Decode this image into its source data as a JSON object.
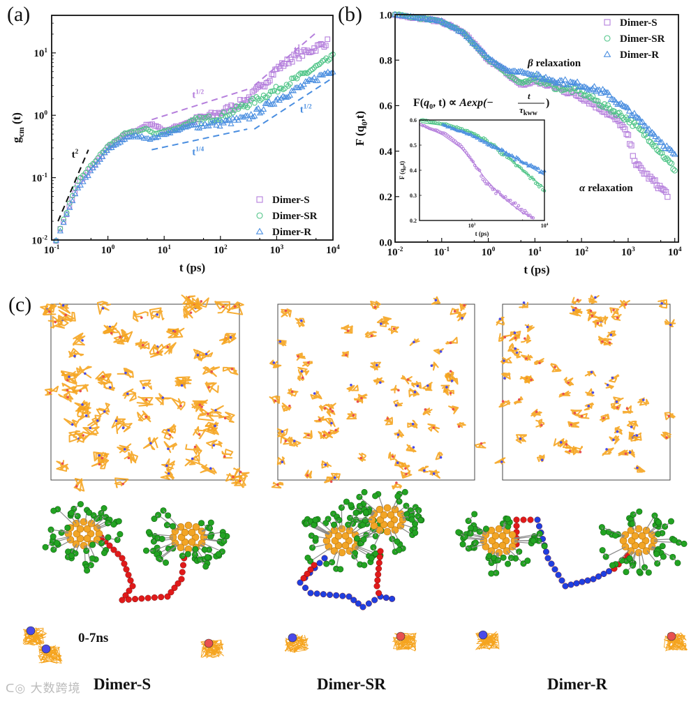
{
  "colors": {
    "dimer_s": "#b57fdc",
    "dimer_sr": "#4fc487",
    "dimer_r": "#4a8ee0",
    "orange": "#f5a41f",
    "green": "#1f9a1f",
    "red": "#e01a1a",
    "blue": "#1f3fe0",
    "bead_blue": "#4a4ae8",
    "bead_red": "#e85050"
  },
  "chart_data": [
    {
      "panel": "(a)",
      "type": "scatter",
      "scale": "log-log",
      "xlabel": "t (ps)",
      "ylabel": "g_cm (t)",
      "ylabel_main": "g",
      "ylabel_sub": "cm",
      "ylabel_tail": " (t)",
      "xlim": [
        0.1,
        10000
      ],
      "ylim": [
        0.01,
        40
      ],
      "xticks": [
        {
          "v": 0.1,
          "b": "10",
          "e": "-1"
        },
        {
          "v": 1,
          "b": "10",
          "e": "0"
        },
        {
          "v": 10,
          "b": "10",
          "e": "1"
        },
        {
          "v": 100,
          "b": "10",
          "e": "2"
        },
        {
          "v": 1000,
          "b": "10",
          "e": "3"
        },
        {
          "v": 10000,
          "b": "10",
          "e": "4"
        }
      ],
      "yticks": [
        {
          "v": 0.01,
          "b": "10",
          "e": "-2"
        },
        {
          "v": 0.1,
          "b": "10",
          "e": "-1"
        },
        {
          "v": 1,
          "b": "10",
          "e": "0"
        },
        {
          "v": 10,
          "b": "10",
          "e": "1"
        }
      ],
      "legend_position": "bottom-right",
      "series": [
        {
          "name": "Dimer-S",
          "marker": "square",
          "x": [
            0.12,
            0.3,
            1,
            2,
            3,
            5,
            7,
            10,
            20,
            30,
            100,
            300,
            600,
            1000,
            2000,
            4000,
            8000
          ],
          "y": [
            0.01,
            0.08,
            0.3,
            0.48,
            0.55,
            0.7,
            0.7,
            0.55,
            0.7,
            0.8,
            1.1,
            1.8,
            3.2,
            5.5,
            8.5,
            11,
            15
          ]
        },
        {
          "name": "Dimer-SR",
          "marker": "circle",
          "x": [
            0.12,
            0.3,
            1,
            2,
            3,
            5,
            7,
            10,
            20,
            30,
            100,
            300,
            1000,
            3000,
            10000
          ],
          "y": [
            0.01,
            0.09,
            0.32,
            0.5,
            0.55,
            0.6,
            0.5,
            0.55,
            0.65,
            0.8,
            0.95,
            1.5,
            2.6,
            4.5,
            8.5
          ]
        },
        {
          "name": "Dimer-R",
          "marker": "triangle",
          "x": [
            0.12,
            0.3,
            1,
            2,
            3,
            6,
            10,
            30,
            100,
            300,
            1000,
            3000,
            10000
          ],
          "y": [
            0.01,
            0.07,
            0.28,
            0.42,
            0.47,
            0.42,
            0.5,
            0.68,
            0.75,
            0.9,
            1.8,
            3.0,
            5.5
          ]
        }
      ],
      "guides": [
        {
          "label_base": "t",
          "label_exp": "2",
          "color": "#111111",
          "x": [
            0.13,
            0.45
          ],
          "y": [
            0.02,
            0.28
          ],
          "label_at": [
            0.26,
            0.21
          ]
        },
        {
          "label_base": "t",
          "label_exp": "1/2",
          "color": "#b57fdc",
          "x": [
            6,
            300
          ],
          "y": [
            0.85,
            2.6
          ],
          "label_at": [
            40,
            1.9
          ]
        },
        {
          "label_base": "t",
          "label_exp": "1",
          "color": "#b57fdc",
          "x": [
            400,
            5000
          ],
          "y": [
            3,
            21
          ],
          "label_at": [
            2300,
            10
          ]
        },
        {
          "label_base": "t",
          "label_exp": "1/4",
          "color": "#4a8ee0",
          "x": [
            6,
            300
          ],
          "y": [
            0.28,
            0.6
          ],
          "label_at": [
            40,
            0.23
          ]
        },
        {
          "label_base": "t",
          "label_exp": "1/2",
          "color": "#4a8ee0",
          "x": [
            400,
            10000
          ],
          "y": [
            0.6,
            4
          ],
          "label_at": [
            3300,
            1.1
          ]
        }
      ]
    },
    {
      "panel": "(b)",
      "type": "scatter",
      "scale": "log-x",
      "xlabel": "t (ps)",
      "ylabel": "F (q0,t)",
      "ylabel_main": "F (q",
      "ylabel_sub": "0",
      "ylabel_tail": ",t)",
      "xlim": [
        0.01,
        12000
      ],
      "ylim": [
        0,
        1.0
      ],
      "xticks": [
        {
          "v": 0.01,
          "b": "10",
          "e": "-2"
        },
        {
          "v": 0.1,
          "b": "10",
          "e": "-1"
        },
        {
          "v": 1,
          "b": "10",
          "e": "0"
        },
        {
          "v": 10,
          "b": "10",
          "e": "1"
        },
        {
          "v": 100,
          "b": "10",
          "e": "2"
        },
        {
          "v": 1000,
          "b": "10",
          "e": "3"
        },
        {
          "v": 10000,
          "b": "10",
          "e": "4"
        }
      ],
      "yticks": [
        {
          "v": 0,
          "t": "0.0"
        },
        {
          "v": 0.2,
          "t": "0.2"
        },
        {
          "v": 0.4,
          "t": "0.4"
        },
        {
          "v": 0.6,
          "t": "0.6"
        },
        {
          "v": 0.8,
          "t": "0.8"
        },
        {
          "v": 1.0,
          "t": "1.0"
        }
      ],
      "legend_position": "top-right",
      "annotations": {
        "beta": "β",
        "beta_text": "relaxation",
        "alpha": "α",
        "alpha_text": "relaxation",
        "formula_left": "F(",
        "formula_q": "q",
        "formula_q_sub": "0",
        "formula_mid": ", t) ∝ ",
        "formula_A": "Aexp(−",
        "formula_num": "t",
        "formula_den": "τ",
        "formula_den_sub": "kww",
        "formula_close": ")"
      },
      "series": [
        {
          "name": "Dimer-S",
          "marker": "square",
          "x": [
            0.01,
            0.1,
            0.3,
            0.5,
            1,
            2,
            3,
            5,
            8,
            10,
            30,
            100,
            300,
            700,
            1000,
            1500,
            3000,
            7000
          ],
          "y": [
            1.0,
            0.97,
            0.92,
            0.87,
            0.8,
            0.76,
            0.73,
            0.69,
            0.7,
            0.71,
            0.68,
            0.64,
            0.58,
            0.52,
            0.46,
            0.34,
            0.28,
            0.21
          ]
        },
        {
          "name": "Dimer-SR",
          "marker": "circle",
          "x": [
            0.01,
            0.1,
            0.3,
            0.5,
            1,
            2,
            3,
            5,
            8,
            10,
            30,
            100,
            300,
            1000,
            3000,
            10000
          ],
          "y": [
            1.0,
            0.97,
            0.92,
            0.87,
            0.8,
            0.76,
            0.73,
            0.7,
            0.71,
            0.72,
            0.68,
            0.66,
            0.6,
            0.54,
            0.45,
            0.32
          ]
        },
        {
          "name": "Dimer-R",
          "marker": "triangle",
          "x": [
            0.01,
            0.1,
            0.3,
            0.5,
            1,
            2,
            3,
            5,
            8,
            10,
            30,
            100,
            300,
            1000,
            3000,
            10000
          ],
          "y": [
            1.0,
            0.97,
            0.92,
            0.87,
            0.81,
            0.77,
            0.75,
            0.75,
            0.74,
            0.73,
            0.71,
            0.69,
            0.66,
            0.58,
            0.49,
            0.38
          ]
        }
      ]
    },
    {
      "panel": "(b) inset",
      "type": "scatter",
      "scale": "log-x",
      "xlabel": "t (ps)",
      "ylabel": "F (q0,t)",
      "ylabel_main": "F (q",
      "ylabel_sub": "0",
      "ylabel_tail": ",t)",
      "xlim": [
        190,
        10000
      ],
      "ylim": [
        0.2,
        0.6
      ],
      "xticks": [
        {
          "v": 1000,
          "b": "10",
          "e": "3"
        },
        {
          "v": 10000,
          "b": "10",
          "e": "4"
        }
      ],
      "yticks": [
        {
          "v": 0.2,
          "t": "0.2"
        },
        {
          "v": 0.3,
          "t": "0.3"
        },
        {
          "v": 0.4,
          "t": "0.4"
        },
        {
          "v": 0.5,
          "t": "0.5"
        },
        {
          "v": 0.6,
          "t": "0.6"
        }
      ],
      "series": [
        {
          "name": "Dimer-S",
          "marker": "circle",
          "x": [
            200,
            400,
            700,
            1000,
            1500,
            2000,
            3000,
            5000,
            7000
          ],
          "y": [
            0.58,
            0.55,
            0.5,
            0.44,
            0.36,
            0.32,
            0.29,
            0.24,
            0.21
          ],
          "fit_y": [
            0.58,
            0.54,
            0.49,
            0.44,
            0.37,
            0.33,
            0.28,
            0.23,
            0.21
          ]
        },
        {
          "name": "Dimer-SR",
          "marker": "circle",
          "x": [
            200,
            500,
            1000,
            2000,
            3000,
            5000,
            10000
          ],
          "y": [
            0.6,
            0.58,
            0.55,
            0.5,
            0.45,
            0.4,
            0.32
          ],
          "fit_y": [
            0.59,
            0.575,
            0.55,
            0.5,
            0.46,
            0.4,
            0.33
          ]
        },
        {
          "name": "Dimer-R",
          "marker": "triangle",
          "x": [
            400,
            1000,
            2000,
            3000,
            5000,
            10000
          ],
          "y": [
            0.58,
            0.54,
            0.49,
            0.47,
            0.43,
            0.39
          ],
          "fit_y": [
            0.58,
            0.54,
            0.5,
            0.47,
            0.43,
            0.38
          ]
        }
      ]
    }
  ],
  "panel_labels": {
    "a": "(a)",
    "b": "(b)",
    "c": "(c)"
  },
  "panel_c": {
    "time_label": "0-7ns",
    "systems": [
      {
        "name": "Dimer-S"
      },
      {
        "name": "Dimer-SR"
      },
      {
        "name": "Dimer-R"
      }
    ]
  },
  "watermark": "大数跨境"
}
